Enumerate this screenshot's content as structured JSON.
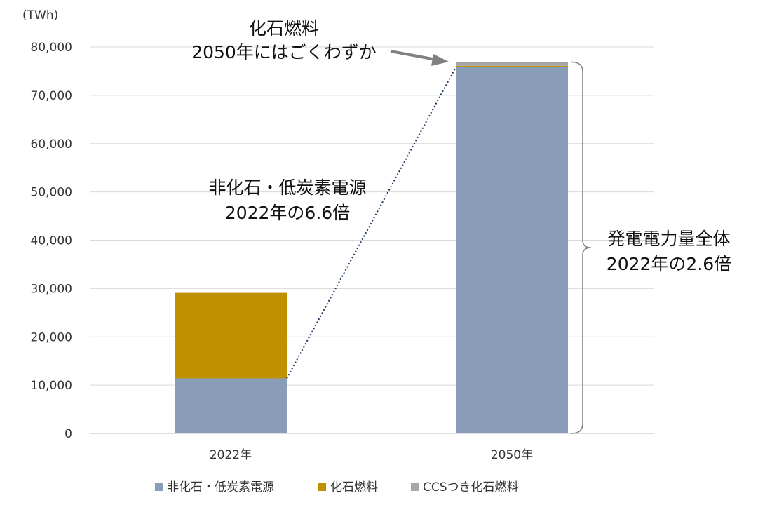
{
  "chart_data": {
    "type": "bar",
    "stacked": true,
    "unit_label": "(TWh)",
    "categories": [
      "2022年",
      "2050年"
    ],
    "series": [
      {
        "name": "非化石・低炭素電源",
        "color": "#8a9db8",
        "values": [
          11400,
          75800
        ]
      },
      {
        "name": "化石燃料",
        "color": "#bf9000",
        "values": [
          17700,
          300
        ]
      },
      {
        "name": "CCSつき化石燃料",
        "color": "#a6a6a6",
        "values": [
          0,
          800
        ]
      }
    ],
    "ylim": [
      0,
      80000
    ],
    "yticks": [
      0,
      10000,
      20000,
      30000,
      40000,
      50000,
      60000,
      70000,
      80000
    ],
    "ytick_labels": [
      "0",
      "10,000",
      "20,000",
      "30,000",
      "40,000",
      "50,000",
      "60,000",
      "70,000",
      "80,000"
    ],
    "grid": true,
    "legend_position": "bottom",
    "annotations": [
      {
        "id": "fossil",
        "lines": [
          "化石燃料",
          "2050年にはごくわずか"
        ]
      },
      {
        "id": "nonfossil",
        "lines": [
          "非化石・低炭素電源",
          "2022年の6.6倍"
        ]
      },
      {
        "id": "total",
        "lines": [
          "発電電力量全体",
          "2022年の2.6倍"
        ]
      }
    ]
  }
}
